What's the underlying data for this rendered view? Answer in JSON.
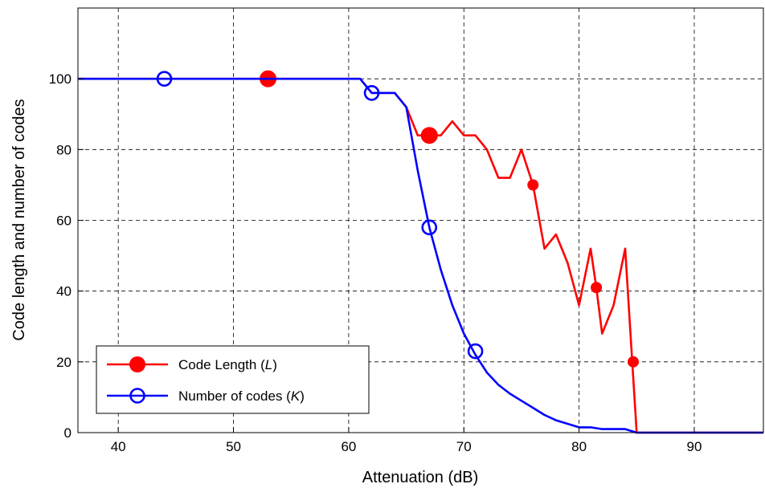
{
  "chart_data": {
    "type": "line",
    "xlabel": "Attenuation (dB)",
    "ylabel": "Code length and number of codes",
    "xlim": [
      36.5,
      96
    ],
    "ylim": [
      0,
      120
    ],
    "xticks": [
      40,
      50,
      60,
      70,
      80,
      90
    ],
    "yticks": [
      0,
      20,
      40,
      60,
      80,
      100
    ],
    "grid": true,
    "legend_position": "bottom-left",
    "series": [
      {
        "name_prefix": "Code Length (",
        "name_var": "L",
        "name_suffix": ")",
        "color": "#ff0000",
        "marker": "filled-circle",
        "x": [
          36.5,
          61,
          62,
          63,
          64,
          65,
          66,
          67,
          68,
          69,
          70,
          71,
          72,
          73,
          74,
          75,
          76,
          77,
          78,
          79,
          80,
          81,
          81.5,
          82,
          83,
          84,
          85,
          96
        ],
        "y": [
          100,
          100,
          96,
          96,
          96,
          92,
          84,
          84,
          84,
          88,
          84,
          84,
          80,
          72,
          72,
          80,
          70,
          52,
          56,
          48,
          36,
          52,
          41,
          28,
          36,
          52,
          0,
          0
        ],
        "markers": [
          {
            "x": 53,
            "y": 100,
            "size": "large"
          },
          {
            "x": 67,
            "y": 84,
            "size": "large"
          },
          {
            "x": 76,
            "y": 70,
            "size": "small"
          },
          {
            "x": 81.5,
            "y": 41,
            "size": "small"
          },
          {
            "x": 84.7,
            "y": 20,
            "size": "small"
          }
        ]
      },
      {
        "name_prefix": "Number of codes (",
        "name_var": "K",
        "name_suffix": ")",
        "color": "#0000ff",
        "marker": "open-circle",
        "x": [
          36.5,
          61,
          62,
          63,
          64,
          65,
          66,
          67,
          68,
          69,
          70,
          71,
          72,
          73,
          74,
          75,
          76,
          77,
          78,
          79,
          80,
          81,
          82,
          83,
          84,
          85,
          96
        ],
        "y": [
          100,
          100,
          96,
          96,
          96,
          92,
          74,
          58,
          46,
          36,
          28,
          22,
          17,
          13.5,
          11,
          9,
          7,
          5,
          3.5,
          2.5,
          1.5,
          1.5,
          1,
          1,
          1,
          0,
          0
        ],
        "markers": [
          {
            "x": 44,
            "y": 100
          },
          {
            "x": 62,
            "y": 96
          },
          {
            "x": 67,
            "y": 58
          },
          {
            "x": 71,
            "y": 23
          }
        ]
      }
    ]
  }
}
